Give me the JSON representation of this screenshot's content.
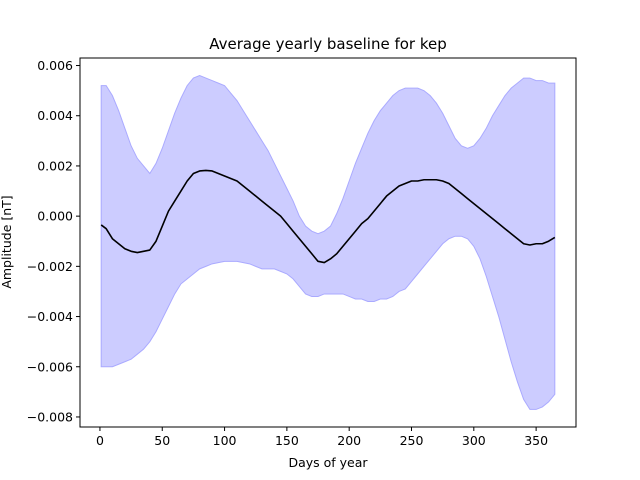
{
  "chart_data": {
    "type": "line",
    "title": "Average yearly baseline for kep",
    "xlabel": "Days of year",
    "ylabel": "Amplitude [nT]",
    "xlim": [
      -16,
      382
    ],
    "ylim": [
      -0.0084,
      0.0063
    ],
    "x_ticks": [
      0,
      50,
      100,
      150,
      200,
      250,
      300,
      350
    ],
    "x_tick_labels": [
      "0",
      "50",
      "100",
      "150",
      "200",
      "250",
      "300",
      "350"
    ],
    "y_ticks": [
      -0.008,
      -0.006,
      -0.004,
      -0.002,
      0.0,
      0.002,
      0.004,
      0.006
    ],
    "y_tick_labels": [
      "−0.008",
      "−0.006",
      "−0.004",
      "−0.002",
      "0.000",
      "0.002",
      "0.004",
      "0.006"
    ],
    "grid": false,
    "colors": {
      "mean_line": "#000000",
      "band_fill": "#ccccff",
      "band_edge": "#aaaaff"
    },
    "series": [
      {
        "kind": "line",
        "x": [
          1,
          5,
          10,
          15,
          20,
          25,
          30,
          35,
          40,
          45,
          50,
          55,
          60,
          65,
          70,
          75,
          80,
          85,
          90,
          95,
          100,
          105,
          110,
          115,
          120,
          125,
          130,
          135,
          140,
          145,
          150,
          155,
          160,
          165,
          170,
          175,
          180,
          185,
          190,
          195,
          200,
          205,
          210,
          215,
          220,
          225,
          230,
          235,
          240,
          245,
          250,
          255,
          260,
          265,
          270,
          275,
          280,
          285,
          290,
          295,
          300,
          305,
          310,
          315,
          320,
          325,
          330,
          335,
          340,
          345,
          350,
          355,
          360,
          365
        ],
        "values": [
          -0.00035,
          -0.0005,
          -0.0009,
          -0.0011,
          -0.0013,
          -0.0014,
          -0.00145,
          -0.0014,
          -0.00135,
          -0.001,
          -0.0004,
          0.0002,
          0.0006,
          0.001,
          0.0014,
          0.0017,
          0.0018,
          0.00182,
          0.0018,
          0.0017,
          0.0016,
          0.0015,
          0.0014,
          0.0012,
          0.001,
          0.0008,
          0.0006,
          0.0004,
          0.0002,
          0.0,
          -0.0003,
          -0.0006,
          -0.0009,
          -0.0012,
          -0.0015,
          -0.0018,
          -0.00185,
          -0.0017,
          -0.0015,
          -0.0012,
          -0.0009,
          -0.0006,
          -0.0003,
          -0.0001,
          0.0002,
          0.0005,
          0.0008,
          0.001,
          0.0012,
          0.0013,
          0.0014,
          0.0014,
          0.00145,
          0.00145,
          0.00145,
          0.0014,
          0.0013,
          0.0011,
          0.0009,
          0.0007,
          0.0005,
          0.0003,
          0.0001,
          -0.0001,
          -0.0003,
          -0.0005,
          -0.0007,
          -0.0009,
          -0.0011,
          -0.00115,
          -0.0011,
          -0.0011,
          -0.001,
          -0.00085
        ]
      },
      {
        "kind": "band",
        "x": [
          1,
          5,
          10,
          15,
          20,
          25,
          30,
          35,
          40,
          45,
          50,
          55,
          60,
          65,
          70,
          75,
          80,
          85,
          90,
          95,
          100,
          105,
          110,
          115,
          120,
          125,
          130,
          135,
          140,
          145,
          150,
          155,
          160,
          165,
          170,
          175,
          180,
          185,
          190,
          195,
          200,
          205,
          210,
          215,
          220,
          225,
          230,
          235,
          240,
          245,
          250,
          255,
          260,
          265,
          270,
          275,
          280,
          285,
          290,
          295,
          300,
          305,
          310,
          315,
          320,
          325,
          330,
          335,
          340,
          345,
          350,
          355,
          360,
          365
        ],
        "upper": [
          0.0052,
          0.0052,
          0.0048,
          0.0042,
          0.0035,
          0.0028,
          0.0023,
          0.002,
          0.0017,
          0.0021,
          0.0027,
          0.0034,
          0.0041,
          0.0047,
          0.0052,
          0.0055,
          0.0056,
          0.0055,
          0.0054,
          0.0053,
          0.0052,
          0.0049,
          0.0046,
          0.0042,
          0.0038,
          0.0034,
          0.003,
          0.0026,
          0.0021,
          0.0016,
          0.0011,
          0.0006,
          0.0,
          -0.0004,
          -0.0006,
          -0.0007,
          -0.0006,
          -0.0004,
          0.0001,
          0.0007,
          0.0014,
          0.0021,
          0.0027,
          0.0033,
          0.0038,
          0.0042,
          0.0045,
          0.0048,
          0.005,
          0.0051,
          0.0051,
          0.0051,
          0.005,
          0.0048,
          0.0045,
          0.0041,
          0.0036,
          0.0031,
          0.0028,
          0.0027,
          0.0028,
          0.0031,
          0.0035,
          0.004,
          0.0044,
          0.0048,
          0.0051,
          0.0053,
          0.0055,
          0.0055,
          0.0054,
          0.0054,
          0.0053,
          0.0053
        ],
        "lower": [
          -0.006,
          -0.006,
          -0.006,
          -0.0059,
          -0.0058,
          -0.0057,
          -0.0055,
          -0.0053,
          -0.005,
          -0.0046,
          -0.0041,
          -0.0036,
          -0.0031,
          -0.0027,
          -0.0025,
          -0.0023,
          -0.0021,
          -0.002,
          -0.0019,
          -0.00185,
          -0.0018,
          -0.0018,
          -0.0018,
          -0.00185,
          -0.0019,
          -0.002,
          -0.0021,
          -0.0021,
          -0.0021,
          -0.0022,
          -0.0023,
          -0.0025,
          -0.0028,
          -0.0031,
          -0.0032,
          -0.0032,
          -0.0031,
          -0.0031,
          -0.0031,
          -0.0031,
          -0.0032,
          -0.0033,
          -0.0033,
          -0.0034,
          -0.0034,
          -0.0033,
          -0.0033,
          -0.0032,
          -0.003,
          -0.0029,
          -0.0026,
          -0.0023,
          -0.002,
          -0.0017,
          -0.0014,
          -0.0011,
          -0.0009,
          -0.0008,
          -0.0008,
          -0.0009,
          -0.0012,
          -0.0017,
          -0.0024,
          -0.0032,
          -0.004,
          -0.0049,
          -0.0058,
          -0.0066,
          -0.0073,
          -0.0077,
          -0.0077,
          -0.0076,
          -0.0074,
          -0.0071
        ]
      }
    ]
  }
}
